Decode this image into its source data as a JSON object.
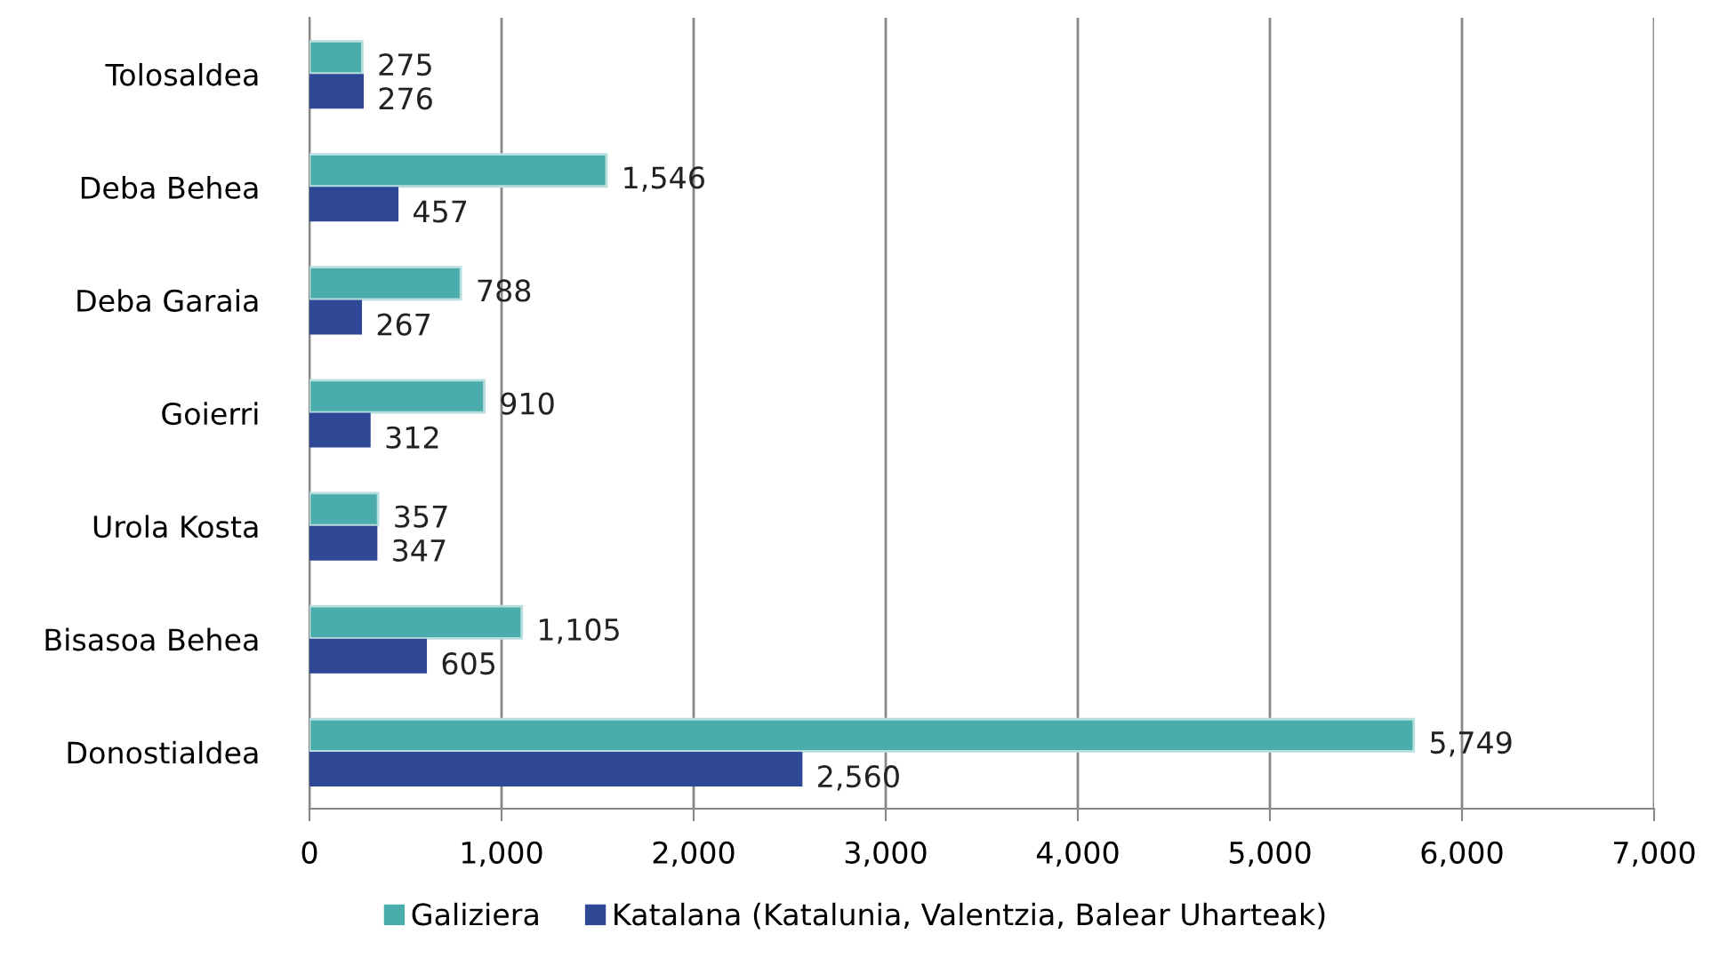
{
  "chart_data": {
    "type": "bar",
    "orientation": "horizontal",
    "categories": [
      "Tolosaldea",
      "Deba Behea",
      "Deba Garaia",
      "Goierri",
      "Urola Kosta",
      "Bisasoa Behea",
      "Donostialdea"
    ],
    "series": [
      {
        "name": "Galiziera",
        "color": "#4bacac",
        "values": [
          275,
          1546,
          788,
          910,
          357,
          1105,
          5749
        ],
        "value_labels": [
          "275",
          "1,546",
          "788",
          "910",
          "357",
          "1,105",
          "5,749"
        ]
      },
      {
        "name": "Katalana (Katalunia, Valentzia, Balear Uharteak)",
        "color": "#2e4896",
        "values": [
          276,
          457,
          267,
          312,
          347,
          605,
          2560
        ],
        "value_labels": [
          "276",
          "457",
          "267",
          "312",
          "347",
          "605",
          "2,560"
        ]
      }
    ],
    "xlim": [
      0,
      7000
    ],
    "xticks": [
      0,
      {
        "value": 1000,
        "label": "1,000"
      },
      {
        "value": 2000,
        "label": "2,000"
      },
      {
        "value": 3000,
        "label": "3,000"
      },
      {
        "value": 4000,
        "label": "4,000"
      },
      {
        "value": 5000,
        "label": "5,000"
      },
      {
        "value": 6000,
        "label": "6,000"
      },
      {
        "value": 7000,
        "label": "7,000"
      }
    ],
    "grid": "x",
    "legend": "bottom"
  }
}
